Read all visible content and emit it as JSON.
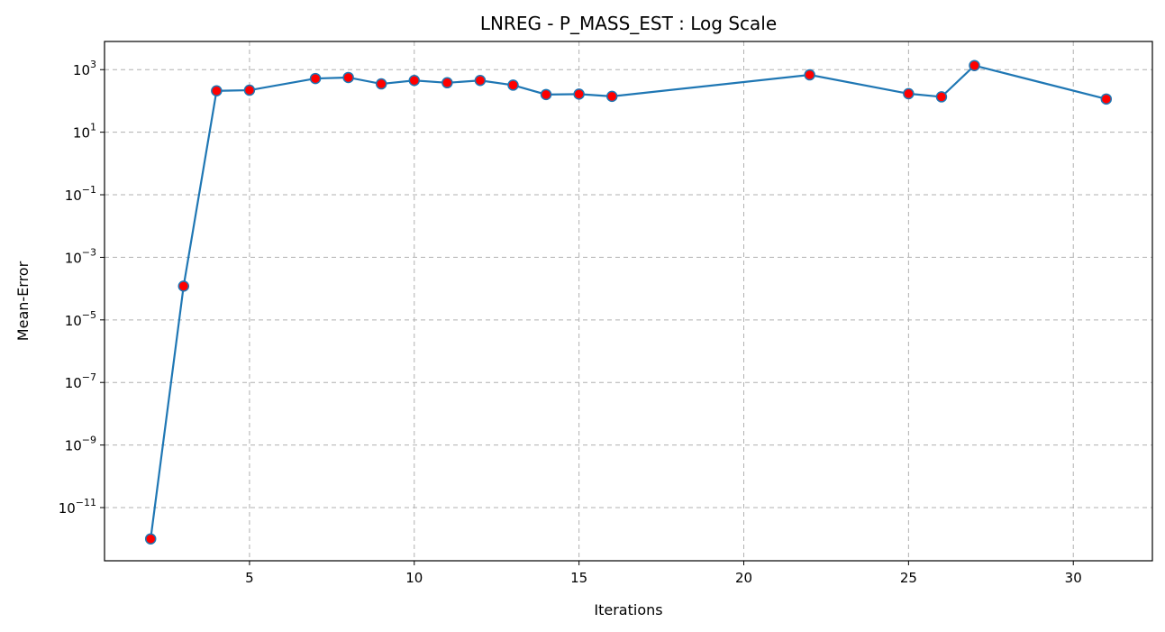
{
  "chart_data": {
    "type": "line",
    "title": "LNREG - P_MASS_EST : Log Scale",
    "xlabel": "Iterations",
    "ylabel": "Mean-Error",
    "yscale": "log",
    "grid": true,
    "xlim": [
      0.6,
      32.4
    ],
    "ylim_log10": [
      -12.7,
      3.9
    ],
    "xticks": [
      5,
      10,
      15,
      20,
      25,
      30
    ],
    "yticks_exp": [
      -11,
      -9,
      -7,
      -5,
      -3,
      -1,
      1,
      3
    ],
    "colors": {
      "line": "#1f77b4",
      "marker_fill": "#ff0000",
      "marker_edge": "#1f77b4"
    },
    "series": [
      {
        "x": [
          2,
          3,
          4,
          5,
          7,
          8,
          9,
          10,
          11,
          12,
          13,
          14,
          15,
          16,
          22,
          25,
          26,
          27,
          31
        ],
        "y": [
          1e-12,
          0.00012,
          210,
          220,
          520,
          560,
          350,
          450,
          380,
          450,
          320,
          160,
          165,
          140,
          680,
          170,
          135,
          1350,
          115
        ]
      }
    ]
  }
}
